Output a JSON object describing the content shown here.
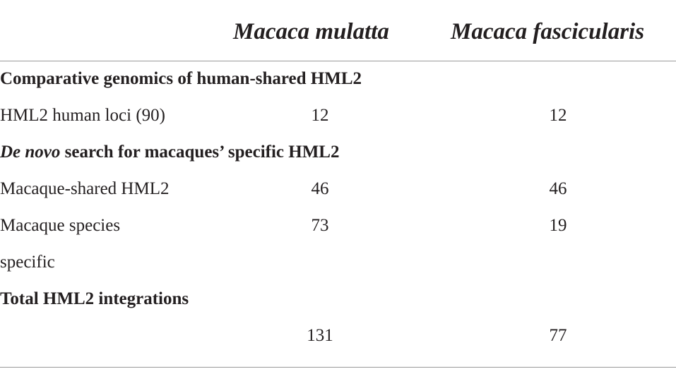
{
  "table": {
    "header": [
      "Macaca mulatta",
      "Macaca fascicularis"
    ],
    "sections": [
      {
        "title": {
          "parts": [
            "Comparative genomics of human-shared HML2"
          ]
        },
        "rows": [
          [
            "HML2 human loci (90)",
            12,
            12
          ]
        ]
      },
      {
        "title": {
          "parts": [
            "De novo",
            "search for macaques’ specific HML2"
          ]
        },
        "rows": [
          [
            "Macaque-shared HML2",
            46,
            46
          ],
          [
            "Macaque species specific",
            73,
            19
          ]
        ]
      },
      {
        "title": {
          "parts": [
            "Total HML2 integrations"
          ]
        },
        "rows": [
          [
            null,
            131,
            77
          ]
        ]
      }
    ]
  }
}
